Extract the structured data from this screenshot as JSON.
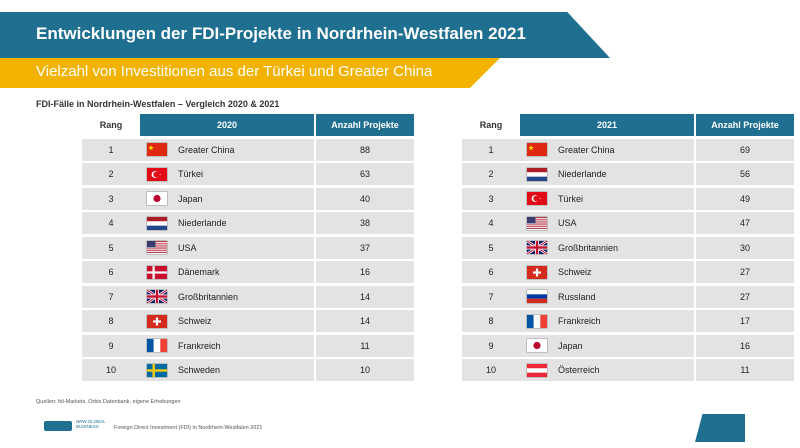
{
  "header": {
    "title": "Entwicklungen der FDI-Projekte in Nordrhein-Westfalen 2021",
    "subtitle": "Vielzahl von Investitionen aus der Türkei und Greater China"
  },
  "section_label": "FDI-Fälle in Nordrhein-Westfalen – Vergleich 2020 & 2021",
  "tables": [
    {
      "header": {
        "rank": "Rang",
        "year": "2020",
        "count": "Anzahl Projekte"
      },
      "rows": [
        {
          "rank": "1",
          "country": "Greater China",
          "count": "88",
          "flag": "china-flag-icon"
        },
        {
          "rank": "2",
          "country": "Türkei",
          "count": "63",
          "flag": "turkey-flag-icon"
        },
        {
          "rank": "3",
          "country": "Japan",
          "count": "40",
          "flag": "japan-flag-icon"
        },
        {
          "rank": "4",
          "country": "Niederlande",
          "count": "38",
          "flag": "netherlands-flag-icon"
        },
        {
          "rank": "5",
          "country": "USA",
          "count": "37",
          "flag": "usa-flag-icon"
        },
        {
          "rank": "6",
          "country": "Dänemark",
          "count": "16",
          "flag": "denmark-flag-icon"
        },
        {
          "rank": "7",
          "country": "Großbritannien",
          "count": "14",
          "flag": "uk-flag-icon"
        },
        {
          "rank": "8",
          "country": "Schweiz",
          "count": "14",
          "flag": "switzerland-flag-icon"
        },
        {
          "rank": "9",
          "country": "Frankreich",
          "count": "11",
          "flag": "france-flag-icon"
        },
        {
          "rank": "10",
          "country": "Schweden",
          "count": "10",
          "flag": "sweden-flag-icon"
        }
      ]
    },
    {
      "header": {
        "rank": "Rang",
        "year": "2021",
        "count": "Anzahl Projekte"
      },
      "rows": [
        {
          "rank": "1",
          "country": "Greater China",
          "count": "69",
          "flag": "china-flag-icon"
        },
        {
          "rank": "2",
          "country": "Niederlande",
          "count": "56",
          "flag": "netherlands-flag-icon"
        },
        {
          "rank": "3",
          "country": "Türkei",
          "count": "49",
          "flag": "turkey-flag-icon"
        },
        {
          "rank": "4",
          "country": "USA",
          "count": "47",
          "flag": "usa-flag-icon"
        },
        {
          "rank": "5",
          "country": "Großbritannien",
          "count": "30",
          "flag": "uk-flag-icon"
        },
        {
          "rank": "6",
          "country": "Schweiz",
          "count": "27",
          "flag": "switzerland-flag-icon"
        },
        {
          "rank": "7",
          "country": "Russland",
          "count": "27",
          "flag": "russia-flag-icon"
        },
        {
          "rank": "8",
          "country": "Frankreich",
          "count": "17",
          "flag": "france-flag-icon"
        },
        {
          "rank": "9",
          "country": "Japan",
          "count": "16",
          "flag": "japan-flag-icon"
        },
        {
          "rank": "10",
          "country": "Österreich",
          "count": "11",
          "flag": "austria-flag-icon"
        }
      ]
    }
  ],
  "footer": {
    "source": "Quellen: fdi-Markets, Orbis Datenbank, eigene Erhebungen",
    "logo_text_1": "NRW.GLOBAL",
    "logo_text_2": "BUSINESS",
    "doc_title": "Foreign Direct Investment (FDI) in Nordrhein-Westfalen 2021"
  },
  "colors": {
    "primary": "#1f6f91",
    "accent": "#f2b300",
    "row_bg": "#e3e3e3"
  }
}
